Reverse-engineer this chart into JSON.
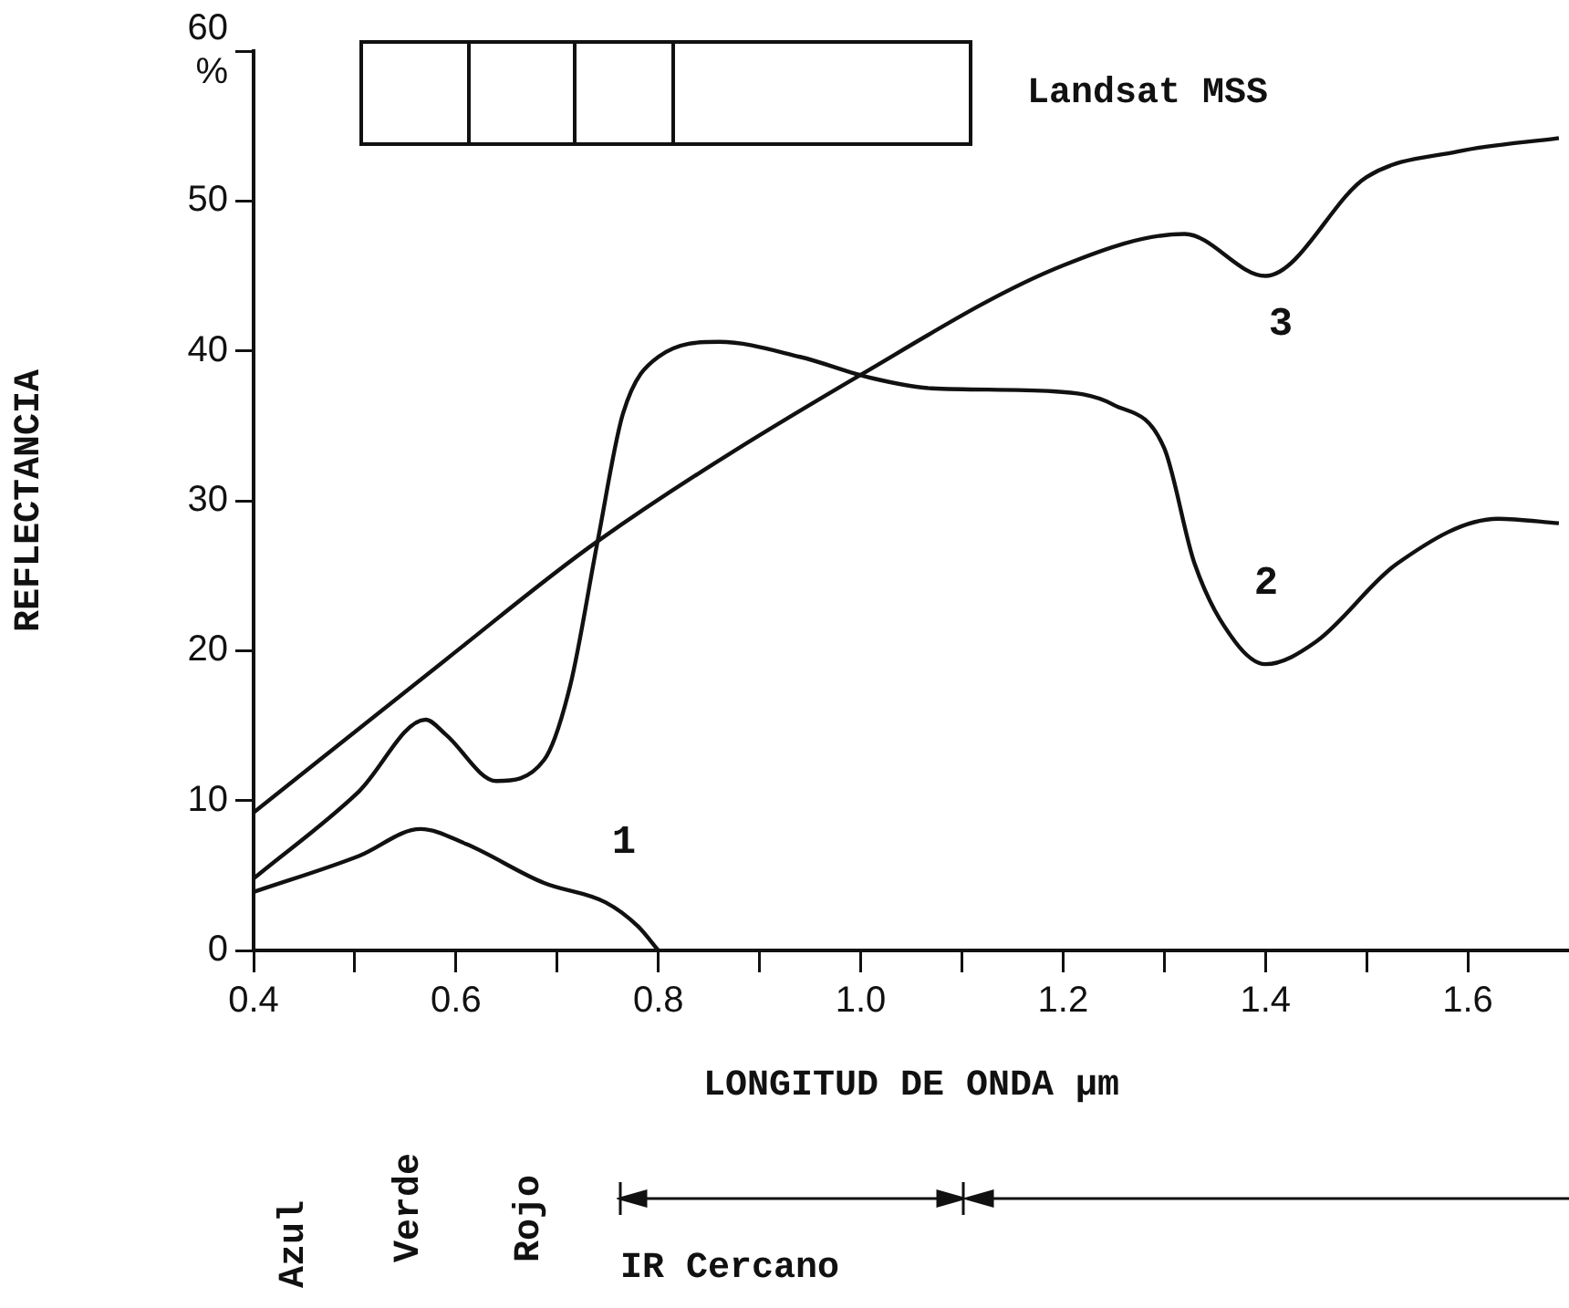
{
  "chart_data": {
    "type": "line",
    "xlabel": "LONGITUD DE ONDA µm",
    "ylabel": "REFLECTANCIA",
    "xlim": [
      0.4,
      1.7
    ],
    "ylim": [
      0,
      60
    ],
    "xticks": [
      {
        "value": 0.4,
        "label": "0.4"
      },
      {
        "value": 0.5,
        "label": null
      },
      {
        "value": 0.6,
        "label": "0.6"
      },
      {
        "value": 0.7,
        "label": null
      },
      {
        "value": 0.8,
        "label": "0.8"
      },
      {
        "value": 0.9,
        "label": null
      },
      {
        "value": 1.0,
        "label": "1.0"
      },
      {
        "value": 1.1,
        "label": null
      },
      {
        "value": 1.2,
        "label": "1.2"
      },
      {
        "value": 1.3,
        "label": null
      },
      {
        "value": 1.4,
        "label": "1.4"
      },
      {
        "value": 1.5,
        "label": null
      },
      {
        "value": 1.6,
        "label": "1.6"
      }
    ],
    "yticks": [
      0,
      10,
      20,
      30,
      40,
      50,
      {
        "value": 60,
        "label": "60\n%"
      }
    ],
    "grid": false,
    "legend": false,
    "marker": "none",
    "line_style": "solid",
    "series": [
      {
        "name": "1",
        "color": "#111111",
        "x": [
          0.4,
          0.504,
          0.565,
          0.61,
          0.687,
          0.748,
          0.78,
          0.8
        ],
        "values": [
          3.9,
          6.3,
          8.1,
          7.1,
          4.5,
          3.2,
          1.6,
          0
        ]
      },
      {
        "name": "2",
        "color": "#111111",
        "x": [
          0.4,
          0.504,
          0.57,
          0.59,
          0.64,
          0.687,
          0.713,
          0.74,
          0.765,
          0.8,
          0.86,
          0.94,
          1.01,
          1.07,
          1.19,
          1.25,
          1.3,
          1.33,
          1.37,
          1.4,
          1.45,
          1.53,
          1.63,
          1.69
        ],
        "values": [
          4.8,
          10.6,
          15.4,
          14.4,
          11.3,
          12.7,
          17.7,
          27.3,
          35.8,
          39.6,
          40.6,
          39.6,
          38.2,
          37.5,
          37.3,
          36.4,
          33.5,
          25.8,
          20.6,
          19.1,
          20.6,
          25.8,
          28.8,
          28.5
        ]
      },
      {
        "name": "3",
        "color": "#111111",
        "x": [
          0.4,
          0.59,
          0.74,
          1.0,
          1.2,
          1.32,
          1.4,
          1.5,
          1.59,
          1.69
        ],
        "values": [
          9.2,
          19.4,
          27.3,
          38.4,
          45.7,
          47.8,
          45,
          51.6,
          53.3,
          54.2
        ]
      }
    ],
    "annotations": [
      "Landsat MSS",
      "Azul",
      "Verde",
      "Rojo",
      "IR Cercano"
    ]
  }
}
